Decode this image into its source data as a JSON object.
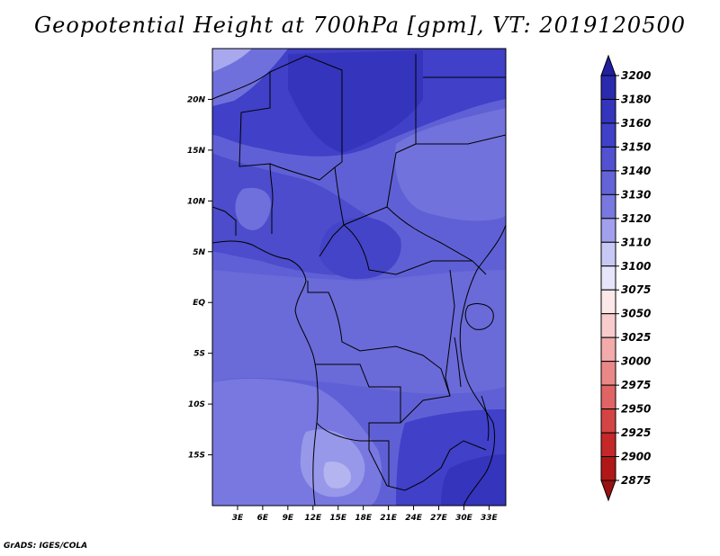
{
  "title": "Geopotential Height at 700hPa [gpm], VT: 2019120500",
  "footer": "GrADS: IGES/COLA",
  "map": {
    "projection": "latlon",
    "lon_range": [
      0,
      35
    ],
    "lat_range": [
      -20,
      25
    ],
    "lon_ticks": [
      "3E",
      "6E",
      "9E",
      "12E",
      "15E",
      "18E",
      "21E",
      "24E",
      "27E",
      "30E",
      "33E"
    ],
    "lat_ticks": [
      "20N",
      "15N",
      "10N",
      "5N",
      "EQ",
      "5S",
      "10S",
      "15S"
    ],
    "field": "geopotential height",
    "level": "700hPa",
    "units": "gpm"
  },
  "colorbar": {
    "levels": [
      "3200",
      "3180",
      "3160",
      "3150",
      "3140",
      "3130",
      "3120",
      "3110",
      "3100",
      "3075",
      "3050",
      "3025",
      "3000",
      "2975",
      "2950",
      "2925",
      "2900",
      "2875"
    ],
    "colors": [
      "#2020a0",
      "#2a2aae",
      "#3434bc",
      "#4040c8",
      "#5252d0",
      "#6464d8",
      "#7878e0",
      "#a0a0ec",
      "#c8c8f4",
      "#e6e6fa",
      "#fce8e8",
      "#f8cccc",
      "#f2aaaa",
      "#ea8888",
      "#e06464",
      "#d44444",
      "#c42828",
      "#b01818",
      "#9a1010"
    ]
  }
}
